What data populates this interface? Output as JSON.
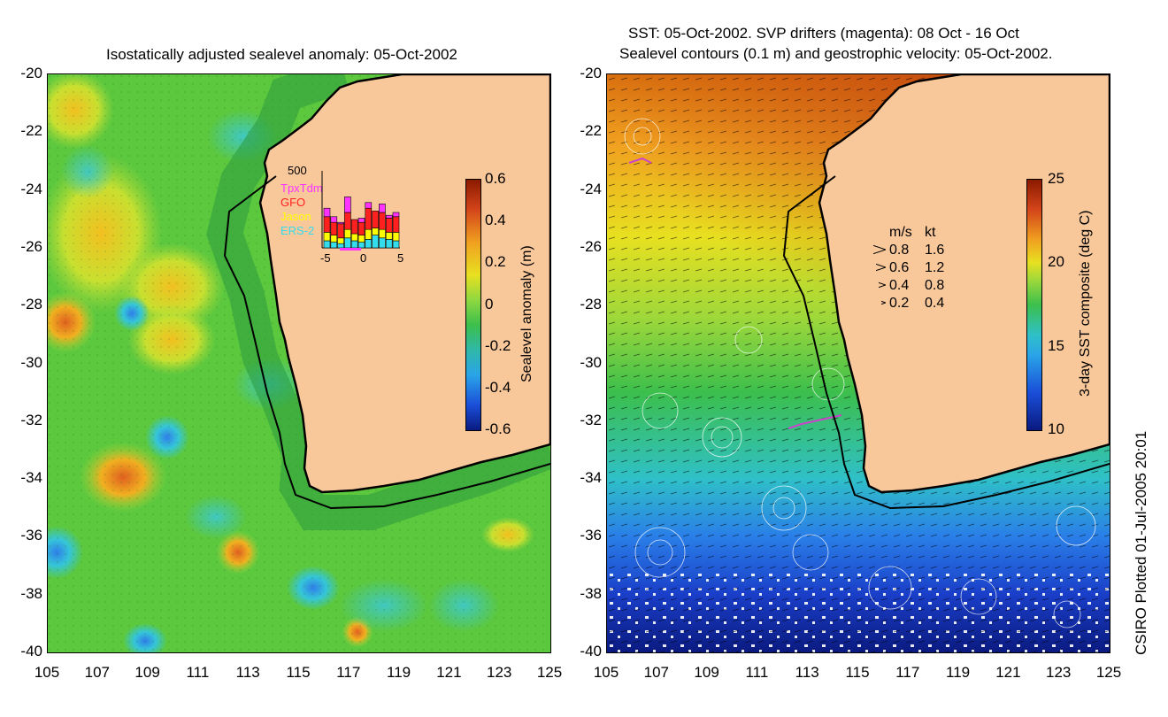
{
  "left_panel": {
    "title": "Isostatically adjusted sealevel anomaly: 05-Oct-2002",
    "colorbar": {
      "label": "Sealevel anomaly (m)",
      "ticks": [
        "0.6",
        "0.4",
        "0.2",
        "0",
        "-0.2",
        "-0.4",
        "-0.6"
      ],
      "range": [
        -0.6,
        0.6
      ]
    },
    "inset": {
      "ytick": "500",
      "xticks": [
        "-5",
        "0",
        "5"
      ],
      "legend": [
        {
          "label": "TpxTdm",
          "color": "#ff33ff"
        },
        {
          "label": "GFO",
          "color": "#ff2020"
        },
        {
          "label": "Jason",
          "color": "#ffff00"
        },
        {
          "label": "ERS-2",
          "color": "#33ddee"
        }
      ]
    }
  },
  "right_panel": {
    "title_line1": "SST: 05-Oct-2002. SVP drifters (magenta): 08 Oct - 16 Oct",
    "title_line2": "Sealevel contours (0.1 m) and geostrophic velocity: 05-Oct-2002.",
    "colorbar": {
      "label": "3-day SST composite (deg C)",
      "ticks": [
        "25",
        "20",
        "15",
        "10"
      ],
      "range": [
        10,
        25
      ]
    },
    "velocity_legend": {
      "header_ms": "m/s",
      "header_kt": "kt",
      "rows": [
        {
          "ms": "0.8",
          "kt": "1.6"
        },
        {
          "ms": "0.6",
          "kt": "1.2"
        },
        {
          "ms": "0.4",
          "kt": "0.8"
        },
        {
          "ms": "0.2",
          "kt": "0.4"
        }
      ]
    }
  },
  "axes": {
    "y_ticks": [
      "-20",
      "-22",
      "-24",
      "-26",
      "-28",
      "-30",
      "-32",
      "-34",
      "-36",
      "-38",
      "-40"
    ],
    "x_ticks": [
      "105",
      "107",
      "109",
      "111",
      "113",
      "115",
      "117",
      "119",
      "121",
      "123",
      "125"
    ]
  },
  "footer": "CSIRO Plotted 01-Jul-2005 20:01",
  "colors": {
    "land": "#f9c89a",
    "ocean_mid": "#3cbf4c",
    "coast": "#000000"
  }
}
